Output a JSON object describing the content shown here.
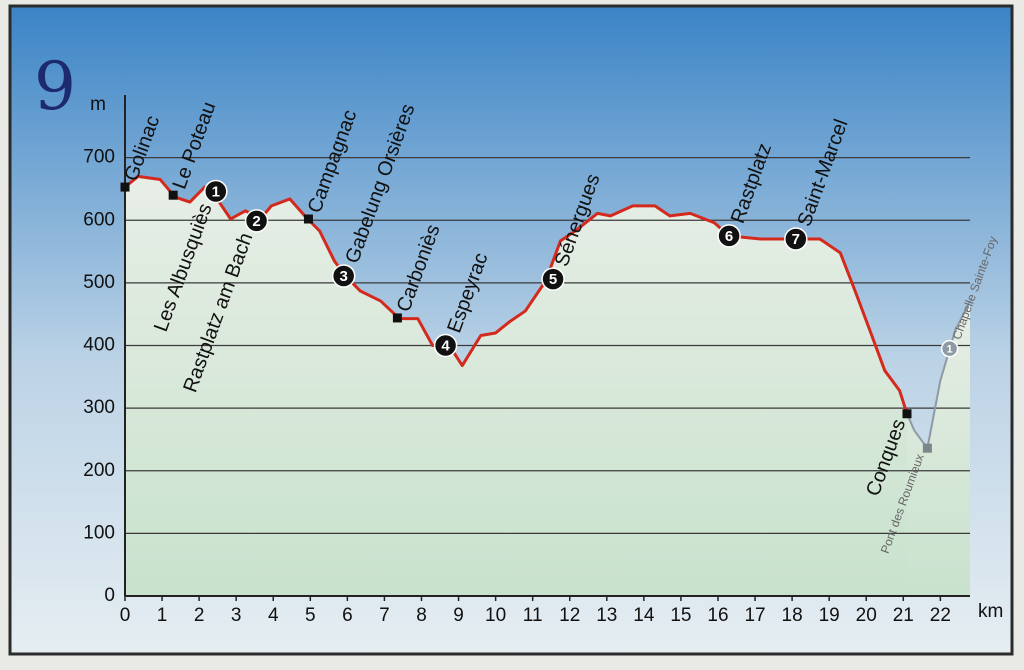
{
  "page_number": "9",
  "chart_data": {
    "type": "line",
    "y_unit": "m",
    "x_unit": "km",
    "xlim": [
      0,
      22.8
    ],
    "ylim": [
      0,
      800
    ],
    "xticks": [
      0,
      1,
      2,
      3,
      4,
      5,
      6,
      7,
      8,
      9,
      10,
      11,
      12,
      13,
      14,
      15,
      16,
      17,
      18,
      19,
      20,
      21,
      22
    ],
    "yticks": [
      0,
      100,
      200,
      300,
      400,
      500,
      600,
      700
    ],
    "grid": true,
    "series": [
      {
        "color": "#d42a1e",
        "x": [
          0,
          0.35,
          0.95,
          1.35,
          1.75,
          2.15,
          2.45,
          2.85,
          3.25,
          3.65,
          3.95,
          4.45,
          4.85,
          5.25,
          5.65,
          5.95,
          6.35,
          6.9,
          7.4,
          7.9,
          8.3,
          8.75,
          9.1,
          9.6,
          10.0,
          10.4,
          10.8,
          11.35,
          11.75,
          12.15,
          12.75,
          13.1,
          13.7,
          14.3,
          14.7,
          15.25,
          15.9,
          16.3,
          17.15,
          17.95,
          18.75,
          19.3,
          19.7,
          20.1,
          20.5,
          20.9,
          21.1
        ],
        "values": [
          653,
          670,
          665,
          637,
          629,
          653,
          637,
          602,
          615,
          602,
          623,
          634,
          607,
          583,
          535,
          511,
          487,
          471,
          443,
          443,
          400,
          400,
          368,
          416,
          420,
          439,
          455,
          503,
          567,
          583,
          611,
          607,
          623,
          623,
          607,
          611,
          596,
          575,
          570,
          570,
          570,
          548,
          487,
          424,
          360,
          328,
          291
        ]
      },
      {
        "color": "#8e9aa3",
        "x": [
          21.1,
          21.3,
          21.65,
          22.0,
          22.4,
          22.8
        ],
        "values": [
          291,
          264,
          236,
          344,
          424,
          471
        ]
      }
    ],
    "waypoints": [
      {
        "label": "Golinac",
        "x": 0,
        "y": 653,
        "label_position": "above"
      },
      {
        "label": "Le Poteau",
        "x": 1.3,
        "y": 640,
        "label_position": "above"
      },
      {
        "label": "Les Albusquiès",
        "marker": "1",
        "x": 2.45,
        "y": 646,
        "label_position": "below"
      },
      {
        "label": "Rastplatz am Bach",
        "marker": "2",
        "x": 3.55,
        "y": 599,
        "label_position": "below"
      },
      {
        "label": "Campagnac",
        "x": 4.95,
        "y": 602,
        "label_position": "above"
      },
      {
        "label": "Gabelung Orsières",
        "marker": "3",
        "x": 5.9,
        "y": 511,
        "label_position": "above"
      },
      {
        "label": "Carboniès",
        "x": 7.35,
        "y": 444,
        "label_position": "above"
      },
      {
        "label": "Espeyrac",
        "marker": "4",
        "x": 8.65,
        "y": 400,
        "label_position": "above"
      },
      {
        "label": "Sénergues",
        "marker": "5",
        "x": 11.55,
        "y": 506,
        "label_position": "above"
      },
      {
        "label": "Rastplatz",
        "marker": "6",
        "x": 16.3,
        "y": 575,
        "label_position": "above"
      },
      {
        "label": "Saint-Marcel",
        "marker": "7",
        "x": 18.1,
        "y": 570,
        "label_position": "above"
      },
      {
        "label": "Conques",
        "x": 21.1,
        "y": 291,
        "label_position": "below"
      },
      {
        "label": "Pont des Roumieux",
        "x": 21.65,
        "y": 236,
        "label_position": "below",
        "color": "#8e9aa3"
      },
      {
        "label": "Chapelle Sainte-Foy",
        "marker": "1",
        "x": 22.25,
        "y": 395,
        "label_position": "above",
        "color": "#8e9aa3"
      }
    ]
  }
}
